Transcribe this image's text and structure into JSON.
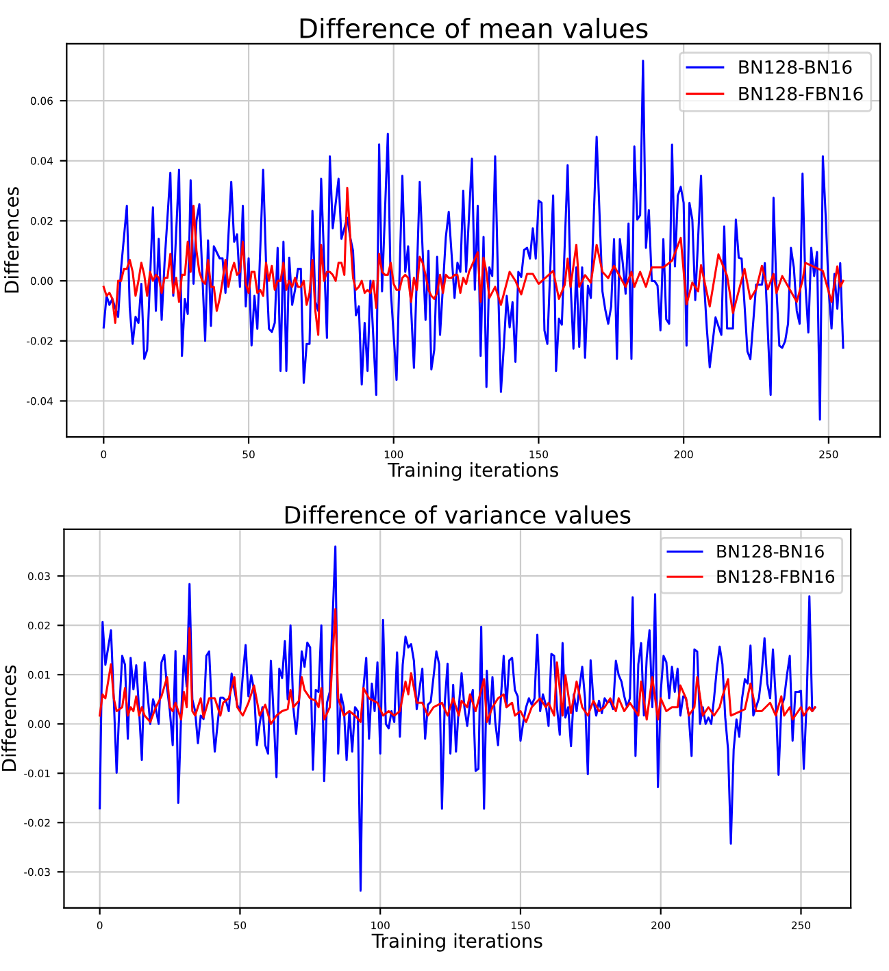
{
  "chart_data": [
    {
      "type": "line",
      "title": "Difference of mean values",
      "xlabel": "Training iterations",
      "ylabel": "Differences",
      "xlim": [
        -12.75,
        267.75
      ],
      "ylim": [
        -0.052,
        0.079
      ],
      "xticks": [
        0,
        50,
        100,
        150,
        200,
        250
      ],
      "yticks": [
        -0.04,
        -0.02,
        {
          "value": 0,
          "label": "0.00"
        },
        0.02,
        0.04,
        0.06
      ],
      "grid": true,
      "legend": "top right",
      "series": [
        {
          "name": "BN128-BN16",
          "color": "#0000ff",
          "x": [
            0,
            1,
            2,
            3,
            5,
            6,
            8,
            9,
            10,
            11,
            12,
            13,
            14,
            15,
            17,
            18,
            19,
            20,
            21,
            23,
            24,
            26,
            27,
            28,
            29,
            30,
            31,
            32,
            33,
            35,
            36,
            37,
            38,
            40,
            41,
            42,
            44,
            45,
            46,
            47,
            48,
            49,
            50,
            51,
            52,
            53,
            55,
            56,
            57,
            58,
            59,
            60,
            61,
            62,
            63,
            64,
            65,
            66,
            67,
            68,
            69,
            70,
            71,
            72,
            73,
            74,
            75,
            77,
            78,
            79,
            81,
            82,
            84,
            85,
            86,
            87,
            88,
            89,
            90,
            91,
            92,
            94,
            95,
            96,
            98,
            99,
            101,
            103,
            104,
            105,
            107,
            109,
            111,
            112,
            113,
            114,
            115,
            116,
            118,
            119,
            121,
            122,
            123,
            124,
            125,
            127,
            128,
            129,
            130,
            131,
            132,
            133,
            134,
            135,
            136,
            137,
            138,
            139,
            140,
            141,
            142,
            143,
            144,
            145,
            146,
            147,
            148,
            149,
            150,
            151,
            152,
            153,
            155,
            156,
            157,
            158,
            160,
            161,
            162,
            163,
            164,
            165,
            166,
            167,
            168,
            170,
            172,
            173,
            174,
            175,
            176,
            177,
            178,
            179,
            180,
            181,
            182,
            183,
            184,
            185,
            186,
            187,
            188,
            189,
            190,
            191,
            192,
            193,
            194,
            195,
            196,
            197,
            198,
            199,
            200,
            201,
            202,
            203,
            204,
            206,
            207,
            208,
            209,
            211,
            213,
            214,
            215,
            217,
            218,
            219,
            220,
            222,
            223,
            225,
            227,
            228,
            230,
            231,
            232,
            233,
            234,
            235,
            236,
            237,
            238,
            239,
            240,
            241,
            242,
            243,
            244,
            245,
            246,
            247,
            248,
            249,
            250,
            251,
            252,
            253,
            254,
            255
          ],
          "values": [
            -0.0155,
            -0.005,
            -0.008,
            -0.006,
            -0.012,
            0.004,
            0.025,
            -0.009,
            -0.021,
            -0.012,
            -0.014,
            -0.001,
            -0.026,
            -0.023,
            0.0245,
            -0.01,
            0.014,
            -0.013,
            0.006,
            0.036,
            -0.005,
            0.037,
            -0.025,
            -0.006,
            -0.011,
            0.0335,
            -0.001,
            0.02,
            0.0255,
            -0.02,
            0.0135,
            -0.015,
            0.0115,
            0.0075,
            0.0075,
            -0.004,
            0.033,
            0.013,
            0.0155,
            -0.002,
            0.025,
            -0.0085,
            0.0075,
            -0.0215,
            -0.005,
            -0.016,
            0.037,
            0.006,
            -0.016,
            -0.017,
            -0.014,
            0.011,
            -0.03,
            0.013,
            -0.03,
            0.0077,
            -0.008,
            -0.003,
            0.004,
            0.004,
            -0.034,
            -0.021,
            -0.021,
            0.0233,
            -0.007,
            -0.01,
            0.034,
            -0.019,
            0.0415,
            0.0175,
            0.034,
            0.014,
            0.021,
            0.0146,
            0.01,
            -0.0115,
            -0.0085,
            -0.0345,
            -0.014,
            -0.03,
            0.0,
            -0.038,
            0.0455,
            -0.0035,
            0.049,
            -0.003,
            -0.033,
            0.035,
            0.003,
            0.0115,
            -0.029,
            0.033,
            -0.013,
            0.01,
            -0.0295,
            -0.023,
            0.008,
            -0.018,
            0.0146,
            0.023,
            -0.0057,
            0.006,
            0.003,
            0.03,
            0.003,
            0.0407,
            -0.003,
            0.025,
            -0.025,
            0.0146,
            -0.0354,
            0.0045,
            0.0016,
            0.0415,
            0.0,
            -0.037,
            -0.0216,
            -0.005,
            -0.0155,
            -0.0071,
            -0.027,
            0.003,
            0.0013,
            0.0103,
            0.011,
            0.0074,
            0.0175,
            0.0074,
            0.0267,
            0.026,
            -0.0165,
            -0.021,
            0.0284,
            -0.03,
            -0.0126,
            -0.0146,
            0.0385,
            -0.0006,
            -0.0226,
            0.0045,
            -0.022,
            0.0045,
            -0.0256,
            -0.0016,
            -0.0057,
            0.048,
            -0.0035,
            -0.0097,
            -0.0143,
            -0.0086,
            0.0139,
            -0.026,
            0.0139,
            0.006,
            -0.0043,
            0.0191,
            -0.026,
            0.0448,
            0.0204,
            0.0219,
            0.0733,
            0.011,
            0.0236,
            0.0,
            -0.0001,
            -0.0016,
            -0.0165,
            0.0139,
            -0.0128,
            -0.0143,
            0.0454,
            0.0048,
            0.0284,
            0.0313,
            0.026,
            -0.0216,
            0.026,
            0.0204,
            -0.0064,
            0.035,
            0.0,
            -0.0159,
            -0.0288,
            -0.0122,
            -0.018,
            0.0181,
            -0.0159,
            -0.0159,
            0.0204,
            0.0077,
            0.0074,
            -0.0235,
            -0.0261,
            -0.0013,
            -0.0013,
            0.0059,
            -0.038,
            0.0277,
            -0.0028,
            -0.0216,
            -0.0223,
            -0.0201,
            -0.0143,
            0.011,
            0.0045,
            -0.01,
            -0.0143,
            0.0357,
            -0.0013,
            -0.0172,
            0.011,
            0.0016,
            0.0096,
            -0.0462,
            0.0415,
            0.0212,
            -0.0028,
            -0.0159,
            0.0023,
            -0.0093,
            0.0059,
            -0.0223
          ]
        },
        {
          "name": "BN128-FBN16",
          "color": "#ff0000",
          "x": [
            0,
            1,
            2,
            3,
            4,
            5,
            6,
            7,
            8,
            9,
            10,
            11,
            12,
            13,
            14,
            15,
            16,
            17,
            18,
            19,
            20,
            21,
            22,
            23,
            24,
            25,
            26,
            27,
            28,
            29,
            30,
            31,
            32,
            33,
            34,
            35,
            36,
            37,
            38,
            39,
            40,
            41,
            42,
            43,
            44,
            45,
            46,
            47,
            48,
            49,
            50,
            51,
            52,
            53,
            54,
            55,
            56,
            57,
            58,
            59,
            60,
            61,
            62,
            63,
            64,
            65,
            66,
            67,
            68,
            69,
            70,
            71,
            72,
            73,
            74,
            75,
            76,
            77,
            78,
            79,
            80,
            81,
            82,
            83,
            84,
            85,
            86,
            87,
            88,
            89,
            90,
            91,
            92,
            93,
            94,
            95,
            96,
            97,
            98,
            99,
            100,
            101,
            102,
            103,
            104,
            105,
            106,
            107,
            108,
            109,
            110,
            111,
            112,
            113,
            114,
            115,
            116,
            117,
            118,
            119,
            120,
            121,
            122,
            123,
            124,
            125,
            126,
            129,
            130,
            131,
            132,
            133,
            135,
            137,
            140,
            142,
            144,
            146,
            148,
            150,
            155,
            157,
            159,
            160,
            161,
            163,
            164,
            166,
            168,
            170,
            172,
            174,
            176,
            180,
            182,
            183,
            185,
            187,
            189,
            193,
            196,
            199,
            201,
            203,
            205,
            206,
            209,
            212,
            215,
            217,
            221,
            223,
            225,
            227,
            229,
            231,
            232,
            234,
            239,
            241,
            242,
            248,
            251,
            253,
            254,
            255
          ],
          "values": [
            -0.002,
            -0.005,
            -0.004,
            -0.006,
            -0.014,
            0.0,
            0.0,
            0.004,
            0.004,
            0.007,
            0.003,
            -0.005,
            0.0,
            0.006,
            0.002,
            -0.005,
            0.003,
            0.0,
            0.002,
            0.001,
            -0.004,
            0.001,
            0.001,
            0.009,
            -0.004,
            0.001,
            -0.007,
            0.002,
            0.002,
            0.013,
            0.003,
            0.025,
            0.01,
            0.003,
            0.0,
            -0.001,
            0.007,
            -0.002,
            -0.002,
            -0.01,
            -0.006,
            0.0,
            0.007,
            -0.002,
            0.003,
            0.006,
            0.002,
            0.003,
            0.013,
            -0.001,
            -0.004,
            0.003,
            0.003,
            -0.004,
            -0.003,
            -0.005,
            0.006,
            0.0,
            0.005,
            -0.003,
            0.0,
            0.0,
            0.006,
            -0.003,
            0.0,
            -0.002,
            0.001,
            -0.002,
            -0.002,
            0.0,
            -0.008,
            -0.004,
            0.007,
            -0.01,
            -0.018,
            0.012,
            0.0,
            0.003,
            0.003,
            0.002,
            0.0,
            0.006,
            0.006,
            0.002,
            0.031,
            0.015,
            0.001,
            -0.003,
            -0.002,
            0.0,
            -0.004,
            -0.003,
            -0.004,
            0.0,
            -0.009,
            0.009,
            0.003,
            0.002,
            0.002,
            0.006,
            -0.001,
            -0.003,
            -0.003,
            0.001,
            0.002,
            0.001,
            -0.007,
            0.001,
            -0.003,
            0.008,
            0.006,
            0.002,
            -0.003,
            -0.005,
            -0.006,
            -0.004,
            0.002,
            -0.004,
            0.002,
            0.001,
            0.001,
            0.002,
            0.002,
            -0.004,
            0.001,
            -0.001,
            0.003,
            0.0095,
            -0.007,
            0.0077,
            0.003,
            -0.0057,
            -0.002,
            -0.008,
            0.003,
            0.0,
            -0.0045,
            0.0023,
            0.0023,
            -0.001,
            0.0033,
            -0.006,
            -0.0013,
            0.0074,
            -0.002,
            0.012,
            -0.002,
            0.0019,
            -0.0006,
            0.012,
            0.003,
            0.0009,
            0.005,
            -0.002,
            0.003,
            -0.002,
            0.003,
            -0.002,
            0.0045,
            0.0045,
            0.0067,
            0.0143,
            -0.0078,
            -0.0006,
            -0.0035,
            0.0052,
            -0.0085,
            0.0088,
            0.0016,
            -0.0107,
            0.004,
            -0.006,
            -0.0028,
            0.005,
            -0.0028,
            0.0023,
            -0.004,
            0.0016,
            -0.007,
            0.0001,
            0.006,
            0.0033,
            -0.007,
            0.0048,
            -0.002,
            0.0
          ]
        }
      ]
    },
    {
      "type": "line",
      "title": "Difference of variance values",
      "xlabel": "Training iterations",
      "ylabel": "Differences",
      "xlim": [
        -12.75,
        267.75
      ],
      "ylim": [
        -0.0373,
        0.0395
      ],
      "xticks": [
        0,
        50,
        100,
        150,
        200,
        250
      ],
      "yticks": [
        -0.03,
        -0.02,
        -0.01,
        {
          "value": 0,
          "label": "0.00"
        },
        0.01,
        0.02,
        0.03
      ],
      "grid": true,
      "legend": "top right",
      "series": [
        {
          "name": "BN128-BN16",
          "color": "#0000ff",
          "x": [
            0,
            1,
            2,
            4,
            5,
            6,
            7,
            8,
            9,
            10,
            11,
            12,
            13,
            14,
            15,
            16,
            18,
            19,
            20,
            21,
            22,
            23,
            24,
            25,
            26,
            27,
            28,
            29,
            30,
            31,
            32,
            33,
            34,
            35,
            36,
            37,
            38,
            39,
            40,
            41,
            42,
            43,
            44,
            45,
            46,
            47,
            48,
            49,
            50,
            51,
            52,
            53,
            54,
            55,
            56,
            57,
            58,
            59,
            60,
            61,
            62,
            63,
            64,
            65,
            66,
            67,
            68,
            69,
            70,
            71,
            72,
            73,
            74,
            75,
            76,
            77,
            78,
            79,
            80,
            81,
            82,
            84,
            85,
            86,
            87,
            88,
            89,
            90,
            91,
            92,
            93,
            94,
            95,
            96,
            97,
            98,
            99,
            100,
            101,
            102,
            103,
            104,
            105,
            106,
            107,
            108,
            109,
            110,
            111,
            112,
            113,
            115,
            116,
            117,
            118,
            120,
            121,
            122,
            123,
            124,
            125,
            126,
            127,
            128,
            129,
            130,
            131,
            132,
            133,
            134,
            135,
            136,
            137,
            138,
            139,
            140,
            141,
            142,
            143,
            144,
            145,
            146,
            147,
            148,
            149,
            150,
            151,
            152,
            153,
            154,
            155,
            156,
            157,
            158,
            159,
            160,
            161,
            162,
            163,
            164,
            165,
            166,
            167,
            168,
            169,
            170,
            171,
            172,
            173,
            174,
            175,
            176,
            177,
            178,
            179,
            180,
            181,
            182,
            183,
            184,
            185,
            186,
            187,
            188,
            189,
            190,
            191,
            192,
            193,
            194,
            195,
            196,
            197,
            198,
            199,
            200,
            201,
            202,
            203,
            204,
            205,
            206,
            207,
            208,
            209,
            210,
            211,
            212,
            213,
            214,
            215,
            216,
            217,
            218,
            219,
            220,
            221,
            222,
            223,
            224,
            225,
            226,
            227,
            228,
            229,
            230,
            231,
            232,
            233,
            234,
            235,
            236,
            237,
            238,
            239,
            240,
            241,
            242,
            243,
            244,
            245,
            246,
            247,
            248,
            249,
            250,
            251,
            252,
            253,
            254,
            255
          ],
          "values": [
            -0.0171,
            0.0207,
            0.012,
            0.019,
            0.005,
            -0.0099,
            0.0035,
            0.0138,
            0.012,
            -0.003,
            0.0134,
            0.007,
            0.0119,
            0.003,
            -0.0073,
            0.0125,
            0.0,
            0.005,
            0.003,
            0.0,
            0.0125,
            0.014,
            0.0073,
            0.0026,
            -0.0043,
            0.0148,
            -0.016,
            0.0017,
            0.0138,
            0.0076,
            0.0284,
            0.005,
            0.0026,
            -0.0039,
            0.0017,
            0.001,
            0.0138,
            0.0147,
            0.0026,
            -0.0056,
            0.0,
            0.0053,
            0.0053,
            0.0047,
            0.0026,
            0.0102,
            0.0069,
            0.0039,
            0.0026,
            0.0099,
            0.016,
            0.0056,
            0.0099,
            0.0069,
            -0.0043,
            0.0,
            0.0034,
            -0.0043,
            -0.006,
            0.0128,
            0.0017,
            -0.0108,
            0.0112,
            0.0093,
            0.0168,
            0.005,
            0.02,
            0.0034,
            -0.002,
            0.0043,
            0.0147,
            0.0116,
            0.0165,
            0.0155,
            -0.0093,
            0.0069,
            0.0065,
            0.02,
            -0.0116,
            0.0043,
            0.0065,
            0.036,
            -0.006,
            0.006,
            0.0034,
            -0.0073,
            0.0026,
            -0.0056,
            0.0034,
            0.0026,
            -0.0338,
            0.0073,
            0.0134,
            -0.003,
            0.0082,
            0.0026,
            0.0125,
            -0.006,
            0.0211,
            0.0,
            -0.0009,
            0.0026,
            0.0004,
            0.0145,
            -0.0026,
            0.012,
            0.0177,
            0.0155,
            0.0162,
            0.0128,
            0.003,
            0.0112,
            -0.003,
            0.0039,
            0.0045,
            0.0147,
            0.0121,
            -0.0172,
            0.0043,
            0.0122,
            -0.006,
            0.0079,
            -0.0056,
            0.0034,
            0.0103,
            0.0034,
            -0.0004,
            0.0043,
            0.0069,
            -0.0095,
            -0.0091,
            0.0197,
            -0.0172,
            0.0108,
            0.0,
            0.0095,
            0.0004,
            -0.0043,
            0.0052,
            0.0138,
            0.0034,
            0.0129,
            0.0134,
            0.0069,
            0.0056,
            -0.0034,
            0.0004,
            0.0034,
            0.0052,
            0.0039,
            0.0052,
            0.0181,
            0.0026,
            0.006,
            0.0039,
            -0.0004,
            0.0142,
            0.0138,
            0.0034,
            -0.0022,
            0.0164,
            0.0013,
            0.0034,
            -0.0045,
            0.006,
            0.0026,
            0.0073,
            0.0116,
            0.0052,
            -0.0102,
            0.0129,
            0.0047,
            0.0017,
            0.0047,
            0.0022,
            0.0052,
            0.0043,
            0.0047,
            0.003,
            0.0128,
            0.0099,
            0.0086,
            0.0056,
            0.0034,
            0.0052,
            0.0257,
            -0.0065,
            0.0121,
            0.0164,
            0.0017,
            0.0134,
            0.019,
            0.0034,
            0.0263,
            -0.0128,
            0.0065,
            0.0138,
            0.0125,
            0.0052,
            0.0116,
            0.0065,
            0.0112,
            0.0017,
            0.0056,
            0.0052,
            0.0017,
            -0.0065,
            0.0151,
            0.0147,
            0.0,
            0.0034,
            0.0,
            0.0013,
            0.0,
            0.0052,
            0.0112,
            0.0157,
            0.0121,
            0.0013,
            -0.0052,
            -0.0243,
            -0.0052,
            0.0009,
            -0.0026,
            0.0052,
            0.0091,
            0.0082,
            0.0159,
            0.0017,
            0.0034,
            0.0052,
            0.0103,
            0.0174,
            0.0082,
            0.0052,
            0.0151,
            0.0052,
            -0.0103,
            0.0034,
            0.0052,
            0.0099,
            0.0138,
            -0.0034,
            0.0065,
            0.0065,
            0.0067,
            -0.0091,
            0.0043,
            0.0259,
            0.0026,
            0.0034
          ]
        },
        {
          "name": "BN128-FBN16",
          "color": "#ff0000",
          "x": [
            0,
            1,
            2,
            4,
            5,
            6,
            7,
            8,
            9,
            10,
            11,
            12,
            13,
            14,
            15,
            16,
            18,
            20,
            22,
            24,
            25,
            26,
            27,
            29,
            30,
            31,
            32,
            33,
            34,
            36,
            37,
            39,
            41,
            43,
            44,
            46,
            48,
            49,
            51,
            53,
            55,
            57,
            59,
            61,
            63,
            65,
            67,
            68,
            69,
            71,
            72,
            73,
            75,
            77,
            78,
            79,
            80,
            82,
            84,
            85,
            87,
            89,
            91,
            93,
            94,
            96,
            99,
            101,
            103,
            105,
            107,
            109,
            110,
            111,
            113,
            115,
            117,
            119,
            122,
            124,
            126,
            128,
            129,
            131,
            132,
            134,
            137,
            138,
            140,
            142,
            144,
            145,
            147,
            148,
            150,
            152,
            154,
            157,
            159,
            160,
            162,
            163,
            165,
            166,
            168,
            170,
            172,
            174,
            176,
            178,
            180,
            182,
            184,
            185,
            187,
            189,
            192,
            193,
            195,
            197,
            199,
            200,
            202,
            204,
            206,
            207,
            209,
            210,
            212,
            213,
            215,
            217,
            219,
            221,
            222,
            224,
            225,
            227,
            230,
            232,
            234,
            236,
            239,
            241,
            243,
            244,
            246,
            247,
            250,
            251,
            253,
            254,
            255
          ],
          "values": [
            0.0017,
            0.006,
            0.0052,
            0.0121,
            0.0052,
            0.0026,
            0.003,
            0.0034,
            0.0073,
            0.0017,
            0.0034,
            0.0026,
            0.0056,
            0.0017,
            0.0034,
            0.0017,
            0.0004,
            0.0034,
            0.0056,
            0.0095,
            0.0034,
            0.0026,
            0.0043,
            0.0009,
            0.0065,
            0.0034,
            0.0194,
            0.0026,
            0.0017,
            0.0052,
            0.0013,
            0.0052,
            0.0052,
            0.0017,
            0.0043,
            0.0052,
            0.0095,
            0.0034,
            0.0017,
            0.0043,
            0.0078,
            0.0017,
            0.0039,
            0.0,
            0.0017,
            0.0026,
            0.003,
            0.0069,
            0.0034,
            0.0047,
            0.0095,
            0.0069,
            0.0052,
            0.0047,
            0.0034,
            0.0073,
            0.0009,
            0.0034,
            0.0233,
            0.0052,
            0.0017,
            0.0026,
            0.0017,
            0.0004,
            0.0073,
            0.0052,
            0.0043,
            0.0017,
            0.0026,
            0.0017,
            0.0026,
            0.0086,
            0.006,
            0.0103,
            0.0043,
            0.0043,
            0.0017,
            0.0034,
            0.0043,
            0.0017,
            0.0052,
            0.0017,
            0.0047,
            0.0034,
            0.006,
            0.0026,
            0.0091,
            0.0004,
            0.0034,
            0.0052,
            0.006,
            0.0034,
            0.0043,
            0.0017,
            0.0026,
            0.0004,
            0.0034,
            0.0052,
            0.0034,
            0.0043,
            0.0017,
            0.0125,
            0.0017,
            0.0099,
            0.0022,
            0.0086,
            0.0034,
            0.0017,
            0.0047,
            0.0026,
            0.0034,
            0.0052,
            0.0026,
            0.0052,
            0.0026,
            0.0043,
            0.0017,
            0.0086,
            0.0009,
            0.0095,
            0.0009,
            0.0052,
            0.0026,
            0.0034,
            0.0034,
            0.0078,
            0.0052,
            0.0017,
            0.0034,
            0.0095,
            0.0017,
            0.0034,
            0.0017,
            0.0034,
            0.0056,
            0.0091,
            0.0017,
            0.0022,
            0.003,
            0.0082,
            0.0026,
            0.0026,
            0.0043,
            0.0017,
            0.0056,
            0.0017,
            0.0034,
            0.0009,
            0.0034,
            0.0017,
            0.0034,
            0.0026,
            0.0034
          ]
        }
      ]
    }
  ]
}
